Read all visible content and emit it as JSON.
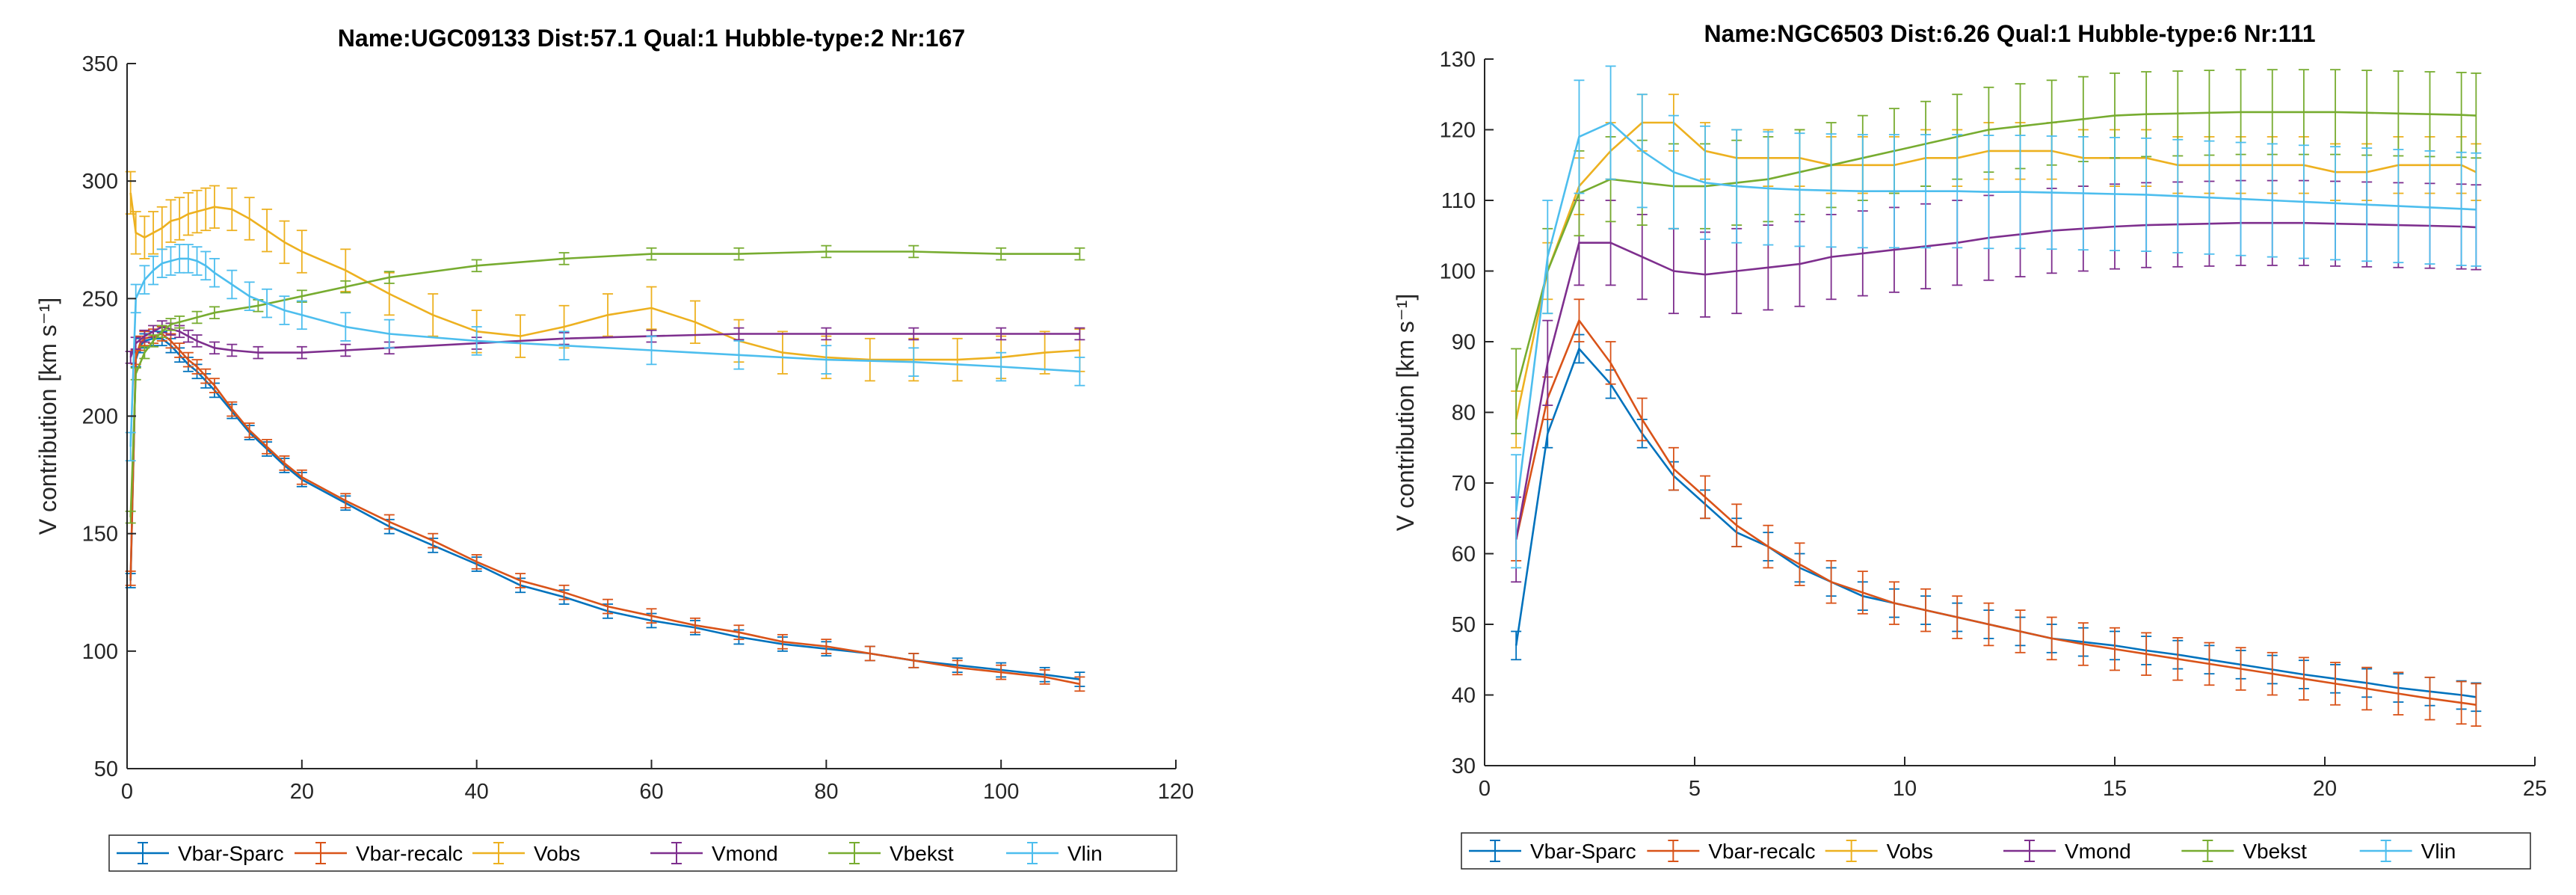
{
  "colors": {
    "Vbar-Sparc": "#0072BD",
    "Vbar-recalc": "#D95319",
    "Vobs": "#EDB120",
    "Vmond": "#7E2F8E",
    "Vbekst": "#77AC30",
    "Vlin": "#4DBEEE"
  },
  "chart_data": [
    {
      "type": "line",
      "title": "Name:UGC09133   Dist:57.1   Qual:1   Hubble-type:2   Nr:167",
      "xlabel": "",
      "ylabel": "V contribution  [km s⁻¹]",
      "xlim": [
        0,
        120
      ],
      "ylim": [
        50,
        350
      ],
      "xticks": [
        0,
        20,
        40,
        60,
        80,
        100,
        120
      ],
      "yticks": [
        50,
        100,
        150,
        200,
        250,
        300,
        350
      ],
      "grid": false,
      "legend_position": "bottom",
      "series": [
        {
          "name": "Vbar-Sparc",
          "x": [
            0.4,
            1,
            1.5,
            2,
            3,
            4,
            5,
            6,
            7,
            8,
            9,
            10,
            12,
            14,
            16,
            18,
            20,
            25,
            30,
            35,
            40,
            45,
            50,
            55,
            60,
            65,
            70,
            75,
            80,
            85,
            90,
            95,
            100,
            105,
            109
          ],
          "y": [
            130,
            224,
            230,
            232,
            233,
            233,
            230,
            226,
            222,
            219,
            215,
            211,
            202,
            193,
            186,
            179,
            173,
            163,
            153,
            145,
            137,
            128,
            123,
            117,
            113,
            110,
            106,
            103,
            101,
            99,
            96,
            94,
            92,
            90,
            88
          ],
          "err": 3
        },
        {
          "name": "Vbar-recalc",
          "x": [
            0.4,
            1,
            1.5,
            2,
            3,
            4,
            5,
            6,
            7,
            8,
            9,
            10,
            12,
            14,
            16,
            18,
            20,
            25,
            30,
            35,
            40,
            45,
            50,
            55,
            60,
            65,
            70,
            75,
            80,
            85,
            90,
            95,
            100,
            105,
            109
          ],
          "y": [
            131,
            225,
            231,
            233,
            234,
            235,
            232,
            228,
            224,
            221,
            217,
            213,
            203,
            194,
            187,
            180,
            174,
            164,
            155,
            147,
            138,
            130,
            125,
            119,
            115,
            111,
            108,
            104,
            102,
            99,
            96,
            93,
            91,
            89,
            86
          ],
          "err": 3
        },
        {
          "name": "Vobs",
          "x": [
            0.4,
            1,
            2,
            3,
            4,
            5,
            6,
            7,
            8,
            9,
            10,
            12,
            14,
            16,
            18,
            20,
            25,
            30,
            35,
            40,
            45,
            50,
            55,
            60,
            65,
            70,
            75,
            80,
            85,
            90,
            95,
            100,
            105,
            109
          ],
          "y": [
            295,
            278,
            276,
            278,
            280,
            283,
            284,
            286,
            287,
            288,
            289,
            288,
            284,
            279,
            274,
            270,
            262,
            252,
            243,
            236,
            234,
            238,
            243,
            246,
            240,
            232,
            227,
            225,
            224,
            224,
            224,
            225,
            227,
            228
          ],
          "err": 9
        },
        {
          "name": "Vmond",
          "x": [
            0.4,
            1,
            2,
            3,
            4,
            5,
            6,
            7,
            8,
            10,
            12,
            15,
            20,
            25,
            30,
            40,
            50,
            60,
            70,
            80,
            90,
            100,
            109
          ],
          "y": [
            225,
            231,
            234,
            236,
            238,
            237,
            236,
            234,
            232,
            229,
            228,
            227,
            227,
            228,
            229,
            231,
            233,
            234,
            235,
            235,
            235,
            235,
            235
          ],
          "err": 2.5
        },
        {
          "name": "Vbekst",
          "x": [
            0.4,
            1,
            2,
            3,
            4,
            5,
            6,
            8,
            10,
            15,
            20,
            25,
            30,
            40,
            50,
            60,
            70,
            80,
            90,
            100,
            109
          ],
          "y": [
            157,
            218,
            227,
            232,
            236,
            239,
            240,
            242,
            244,
            247,
            251,
            255,
            259,
            264,
            267,
            269,
            269,
            270,
            270,
            269,
            269
          ],
          "err": 2.5
        },
        {
          "name": "Vlin",
          "x": [
            0.4,
            1,
            2,
            3,
            4,
            5,
            6,
            7,
            8,
            9,
            10,
            12,
            14,
            16,
            18,
            20,
            25,
            30,
            40,
            50,
            60,
            70,
            80,
            90,
            100,
            109
          ],
          "y": [
            187,
            250,
            258,
            262,
            265,
            266,
            267,
            267,
            266,
            264,
            261,
            256,
            251,
            248,
            245,
            243,
            238,
            235,
            232,
            230,
            228,
            226,
            224,
            223,
            221,
            219
          ],
          "err": 6
        }
      ]
    },
    {
      "type": "line",
      "title": "Name:NGC6503   Dist:6.26   Qual:1   Hubble-type:6   Nr:111",
      "xlabel": "",
      "ylabel": "V contribution  [km s⁻¹]",
      "xlim": [
        0,
        25
      ],
      "ylim": [
        30,
        130
      ],
      "xticks": [
        0,
        5,
        10,
        15,
        20,
        25
      ],
      "yticks": [
        30,
        40,
        50,
        60,
        70,
        80,
        90,
        100,
        110,
        120,
        130
      ],
      "grid": false,
      "legend_position": "bottom",
      "series": [
        {
          "name": "Vbar-Sparc",
          "x": [
            0.75,
            1.5,
            2.25,
            3,
            3.75,
            4.5,
            5.25,
            6,
            6.75,
            7.5,
            8.25,
            9,
            9.75,
            10.5,
            11.25,
            12,
            12.75,
            13.5,
            14.25,
            15,
            15.75,
            16.5,
            17.25,
            18,
            18.75,
            19.5,
            20.25,
            21,
            21.75,
            22.5,
            23.25,
            23.6
          ],
          "y": [
            47,
            77,
            89,
            84,
            77,
            71,
            67,
            63,
            61,
            58,
            56,
            54,
            53,
            52,
            51,
            50,
            49,
            48,
            47.5,
            47,
            46.3,
            45.7,
            45,
            44.3,
            43.6,
            42.9,
            42.3,
            41.7,
            41,
            40.5,
            40,
            39.7
          ],
          "err": 2
        },
        {
          "name": "Vbar-recalc",
          "x": [
            0.75,
            1.5,
            2.25,
            3,
            3.75,
            4.5,
            5.25,
            6,
            6.75,
            7.5,
            8.25,
            9,
            9.75,
            10.5,
            11.25,
            12,
            12.75,
            13.5,
            14.25,
            15,
            15.75,
            16.5,
            17.25,
            18,
            18.75,
            19.5,
            20.25,
            21,
            21.75,
            22.5,
            23.25,
            23.6
          ],
          "y": [
            62,
            82,
            93,
            87,
            79,
            72,
            68,
            64,
            61,
            58.5,
            56,
            54.5,
            53,
            52,
            51,
            50,
            49,
            48,
            47.2,
            46.5,
            45.8,
            45.1,
            44.4,
            43.7,
            43,
            42.3,
            41.6,
            40.9,
            40.2,
            39.5,
            38.9,
            38.6
          ],
          "err": 3
        },
        {
          "name": "Vobs",
          "x": [
            0.75,
            1.5,
            2.25,
            3,
            3.75,
            4.5,
            5.25,
            6,
            6.75,
            7.5,
            8.25,
            9,
            9.75,
            10.5,
            11.25,
            12,
            12.75,
            13.5,
            14.25,
            15,
            15.75,
            16.5,
            17.25,
            18,
            18.75,
            19.5,
            20.25,
            21,
            21.75,
            22.5,
            23.25,
            23.6
          ],
          "y": [
            79,
            100,
            112,
            117,
            121,
            121,
            117,
            116,
            116,
            116,
            115,
            115,
            115,
            116,
            116,
            117,
            117,
            117,
            116,
            116,
            116,
            115,
            115,
            115,
            115,
            115,
            114,
            114,
            115,
            115,
            115,
            114
          ],
          "err": 4
        },
        {
          "name": "Vmond",
          "x": [
            0.75,
            1.5,
            2.25,
            3,
            3.75,
            4.5,
            5.25,
            6,
            6.75,
            7.5,
            8.25,
            9,
            9.75,
            10.5,
            11.25,
            12,
            12.75,
            13.5,
            14.25,
            15,
            15.75,
            16.5,
            17.25,
            18,
            18.75,
            19.5,
            20.25,
            21,
            21.75,
            22.5,
            23.25,
            23.6
          ],
          "y": [
            62,
            87,
            104,
            104,
            102,
            100,
            99.5,
            100,
            100.5,
            101,
            102,
            102.5,
            103,
            103.5,
            104,
            104.7,
            105.2,
            105.7,
            106,
            106.3,
            106.5,
            106.6,
            106.7,
            106.8,
            106.8,
            106.8,
            106.7,
            106.6,
            106.5,
            106.4,
            106.3,
            106.2
          ],
          "err": 6
        },
        {
          "name": "Vbekst",
          "x": [
            0.75,
            1.5,
            2.25,
            3,
            3.75,
            4.5,
            5.25,
            6,
            6.75,
            7.5,
            8.25,
            9,
            9.75,
            10.5,
            11.25,
            12,
            12.75,
            13.5,
            14.25,
            15,
            15.75,
            16.5,
            17.25,
            18,
            18.75,
            19.5,
            20.25,
            21,
            21.75,
            22.5,
            23.25,
            23.6
          ],
          "y": [
            83,
            100,
            111,
            113,
            112.5,
            112,
            112,
            112.5,
            113,
            114,
            115,
            116,
            117,
            118,
            119,
            120,
            120.5,
            121,
            121.5,
            122,
            122.2,
            122.3,
            122.4,
            122.5,
            122.5,
            122.5,
            122.5,
            122.4,
            122.3,
            122.2,
            122.1,
            122
          ],
          "err": 6
        },
        {
          "name": "Vlin",
          "x": [
            0.75,
            1.5,
            2.25,
            3,
            3.75,
            4.5,
            5.25,
            6,
            6.75,
            7.5,
            8.25,
            9,
            9.75,
            10.5,
            11.25,
            12,
            12.75,
            13.5,
            14.25,
            15,
            15.75,
            16.5,
            17.25,
            18,
            18.75,
            19.5,
            20.25,
            21,
            21.75,
            22.5,
            23.25,
            23.6
          ],
          "y": [
            66,
            102,
            119,
            121,
            117,
            114,
            112.5,
            112,
            111.7,
            111.5,
            111.4,
            111.3,
            111.3,
            111.3,
            111.3,
            111.2,
            111.2,
            111.1,
            111,
            110.9,
            110.8,
            110.6,
            110.4,
            110.2,
            110,
            109.8,
            109.6,
            109.4,
            109.2,
            109,
            108.8,
            108.7
          ],
          "err": 8
        }
      ]
    }
  ]
}
